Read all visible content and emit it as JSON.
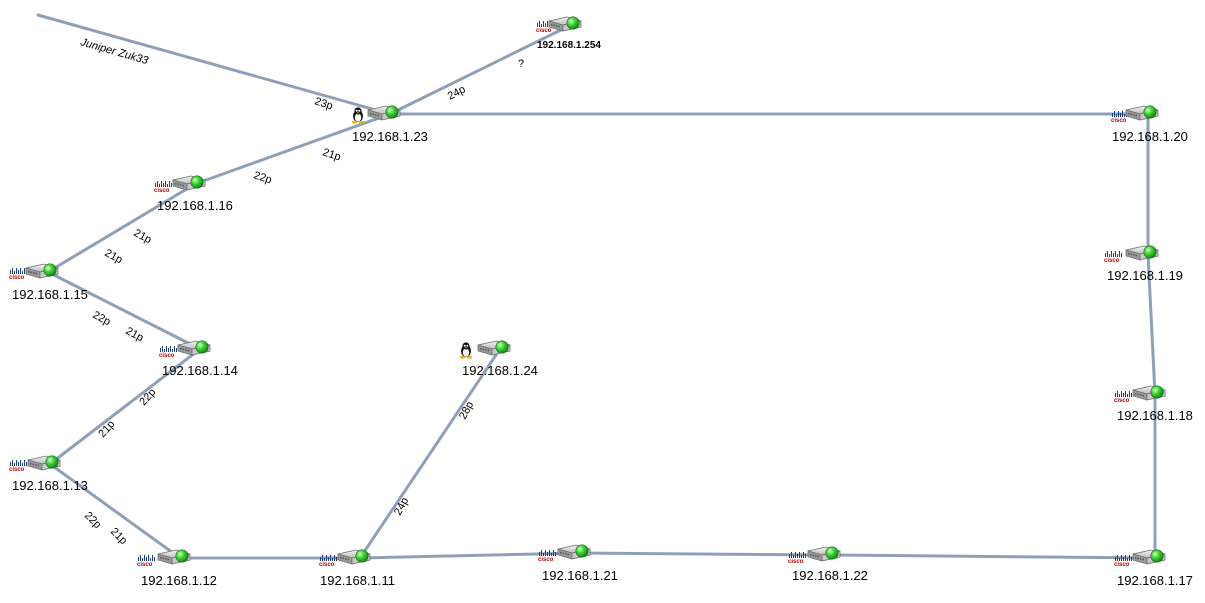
{
  "external_link_label": "Juniper Zuk33",
  "switches": [
    {
      "id": "s23",
      "ip": "192.168.1.23",
      "badge": "linux"
    },
    {
      "id": "s254",
      "ip": "192.168.1.254",
      "badge": "cisco"
    },
    {
      "id": "s20",
      "ip": "192.168.1.20",
      "badge": "cisco"
    },
    {
      "id": "s16",
      "ip": "192.168.1.16",
      "badge": "cisco"
    },
    {
      "id": "s15",
      "ip": "192.168.1.15",
      "badge": "cisco"
    },
    {
      "id": "s14",
      "ip": "192.168.1.14",
      "badge": "cisco"
    },
    {
      "id": "s24",
      "ip": "192.168.1.24",
      "badge": "linux"
    },
    {
      "id": "s13",
      "ip": "192.168.1.13",
      "badge": "cisco"
    },
    {
      "id": "s12",
      "ip": "192.168.1.12",
      "badge": "cisco"
    },
    {
      "id": "s11",
      "ip": "192.168.1.11",
      "badge": "cisco"
    },
    {
      "id": "s21",
      "ip": "192.168.1.21",
      "badge": "cisco"
    },
    {
      "id": "s22",
      "ip": "192.168.1.22",
      "badge": "cisco"
    },
    {
      "id": "s17",
      "ip": "192.168.1.17",
      "badge": "cisco"
    },
    {
      "id": "s18",
      "ip": "192.168.1.18",
      "badge": "cisco"
    },
    {
      "id": "s19",
      "ip": "192.168.1.19",
      "badge": "cisco"
    }
  ],
  "links": [
    {
      "from": "ext",
      "to": "s23",
      "labels": [
        "23p"
      ]
    },
    {
      "from": "s23",
      "to": "s254",
      "labels": [
        "24p",
        "?"
      ]
    },
    {
      "from": "s23",
      "to": "s20",
      "labels": []
    },
    {
      "from": "s23",
      "to": "s16",
      "labels": [
        "21p",
        "22p"
      ]
    },
    {
      "from": "s16",
      "to": "s15",
      "labels": [
        "21p",
        "21p"
      ]
    },
    {
      "from": "s15",
      "to": "s14",
      "labels": [
        "22p",
        "21p"
      ]
    },
    {
      "from": "s14",
      "to": "s13",
      "labels": [
        "22p",
        "21p"
      ]
    },
    {
      "from": "s13",
      "to": "s12",
      "labels": [
        "22p",
        "21p"
      ]
    },
    {
      "from": "s12",
      "to": "s11",
      "labels": []
    },
    {
      "from": "s11",
      "to": "s24",
      "labels": [
        "24p",
        "28p"
      ]
    },
    {
      "from": "s11",
      "to": "s21",
      "labels": []
    },
    {
      "from": "s21",
      "to": "s22",
      "labels": []
    },
    {
      "from": "s22",
      "to": "s17",
      "labels": []
    },
    {
      "from": "s17",
      "to": "s18",
      "labels": []
    },
    {
      "from": "s18",
      "to": "s19",
      "labels": []
    },
    {
      "from": "s19",
      "to": "s20",
      "labels": []
    }
  ],
  "colors": {
    "link": "#8ea0b8",
    "status_up": "#33cc33",
    "cisco_brand": "#b30000"
  },
  "cisco_text": "cisco"
}
